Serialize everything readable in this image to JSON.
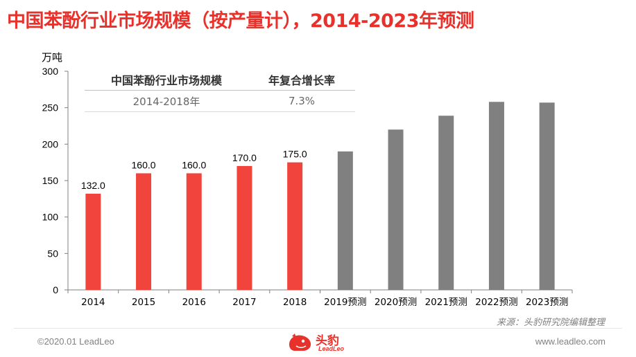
{
  "title": "中国苯酚行业市场规模（按产量计），2014-2023年预测",
  "colors": {
    "accent": "#e8312a",
    "actual": "#f0443c",
    "forecast": "#808080"
  },
  "chart_data": {
    "type": "bar",
    "ylabel": "万吨",
    "ylim": [
      0,
      300
    ],
    "yticks": [
      0,
      50,
      100,
      150,
      200,
      250,
      300
    ],
    "categories": [
      "2014",
      "2015",
      "2016",
      "2017",
      "2018",
      "2019预测",
      "2020预测",
      "2021预测",
      "2022预测",
      "2023预测"
    ],
    "values": [
      132.0,
      160.0,
      160.0,
      170.0,
      175.0,
      190,
      220,
      239,
      258,
      257
    ],
    "data_labels": [
      "132.0",
      "160.0",
      "160.0",
      "170.0",
      "175.0",
      null,
      null,
      null,
      null,
      null
    ],
    "forecast_from_index": 5,
    "grid": false
  },
  "cagr_table": {
    "headers": [
      "中国苯酚行业市场规模",
      "年复合增长率"
    ],
    "row": [
      "2014-2018年",
      "7.3%"
    ]
  },
  "source": "来源：头豹研究院编辑整理",
  "footer": {
    "copyright": "©2020.01 LeadLeo",
    "logo_text": "头豹",
    "logo_sub": "LeadLeo",
    "website": "www.leadleo.com"
  }
}
